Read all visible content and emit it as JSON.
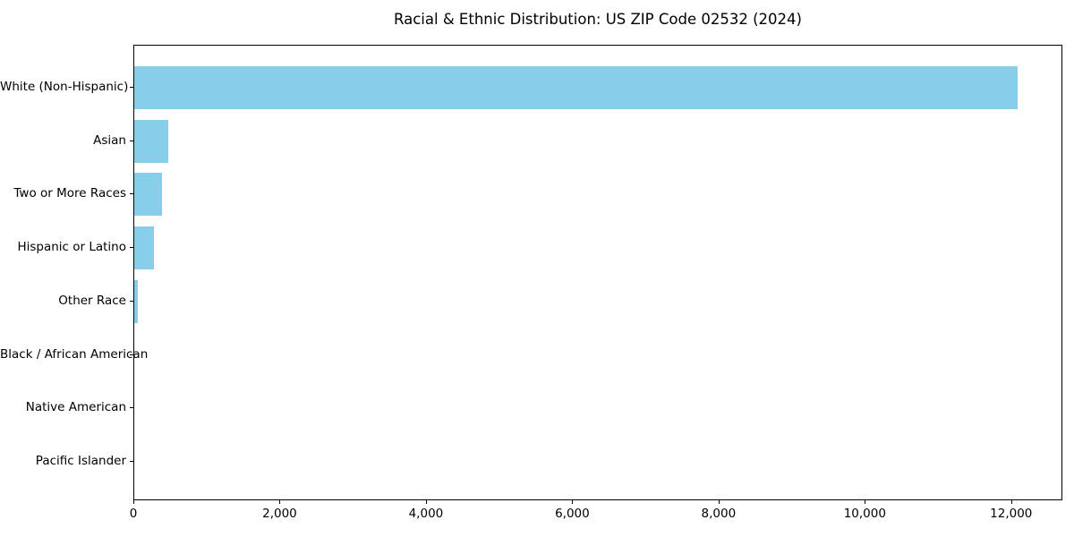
{
  "chart_data": {
    "type": "bar",
    "orientation": "horizontal",
    "title": "Racial & Ethnic Distribution: US ZIP Code 02532 (2024)",
    "categories": [
      "White (Non-Hispanic)",
      "Asian",
      "Two or More Races",
      "Hispanic or Latino",
      "Other Race",
      "Black / African American",
      "Native American",
      "Pacific Islander"
    ],
    "values": [
      12070,
      460,
      380,
      270,
      50,
      0,
      0,
      0
    ],
    "xlabel": "",
    "ylabel": "",
    "xlim": [
      0,
      12700
    ],
    "xticks": [
      0,
      2000,
      4000,
      6000,
      8000,
      10000,
      12000
    ],
    "xtick_labels": [
      "0",
      "2,000",
      "4,000",
      "6,000",
      "8,000",
      "10,000",
      "12,000"
    ],
    "bar_color": "#87CEEB",
    "axis_color": "#000000",
    "background_color": "#ffffff",
    "grid": false,
    "legend": false
  }
}
